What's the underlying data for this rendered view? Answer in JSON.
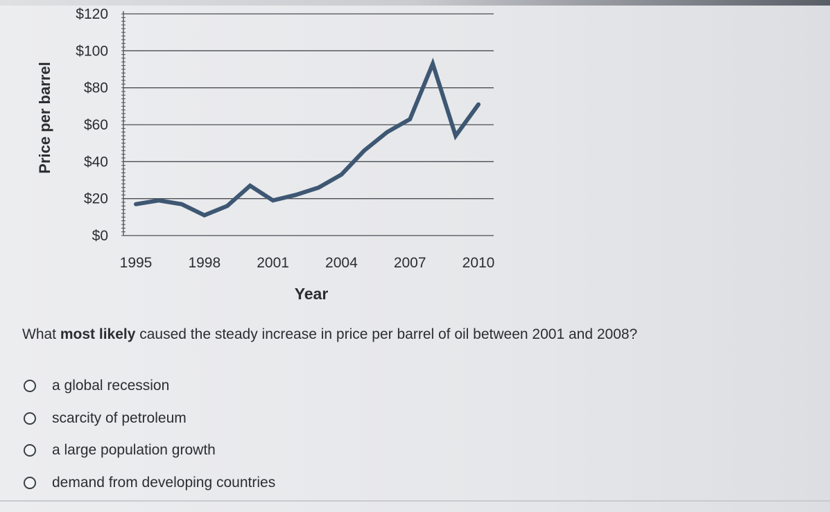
{
  "chart_data": {
    "type": "line",
    "xlabel": "Year",
    "ylabel": "Price per barrel",
    "x_ticks": [
      "1995",
      "1998",
      "2001",
      "2004",
      "2007",
      "2010"
    ],
    "y_ticks": [
      "$0",
      "$20",
      "$40",
      "$60",
      "$80",
      "$100",
      "$120"
    ],
    "xlim": [
      1995,
      2010
    ],
    "ylim": [
      0,
      120
    ],
    "grid": "horizontal",
    "series": [
      {
        "color": "#3e5773",
        "x": [
          1995,
          1996,
          1997,
          1998,
          1999,
          2000,
          2001,
          2002,
          2003,
          2004,
          2005,
          2006,
          2007,
          2008,
          2009,
          2010
        ],
        "y": [
          17,
          19,
          17,
          11,
          16,
          27,
          19,
          22,
          26,
          33,
          46,
          56,
          63,
          93,
          54,
          71
        ]
      }
    ]
  },
  "question": {
    "prefix": "What ",
    "emphasis": "most likely",
    "suffix": " caused the steady increase in price per barrel of oil between 2001 and 2008?"
  },
  "options": [
    "a global recession",
    "scarcity of petroleum",
    "a large population growth",
    "demand from developing countries"
  ]
}
